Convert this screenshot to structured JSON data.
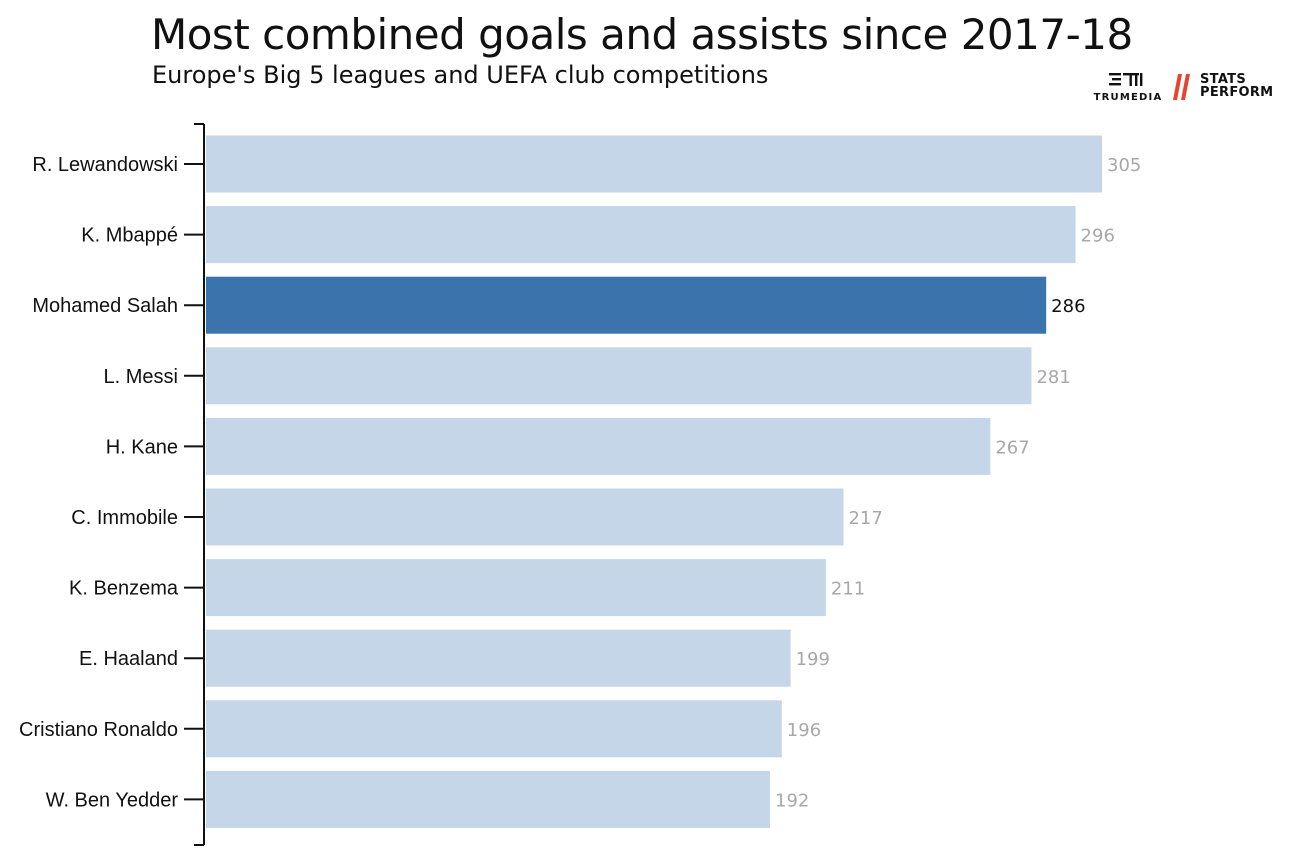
{
  "header": {
    "title": "Most combined goals and assists since 2017-18",
    "subtitle": "Europe's Big 5 leagues and UEFA club competitions"
  },
  "logos": {
    "trumedia": "TRUMEDIA",
    "stats_perform_line1": "STATS",
    "stats_perform_line2": "PERFORM"
  },
  "colors": {
    "bar_default": "#c5d6e8",
    "bar_highlight": "#3b73ad",
    "value_label_default": "#a8a8a8",
    "value_label_highlight": "#111111",
    "accent_red": "#e8432e"
  },
  "chart_data": {
    "type": "bar",
    "orientation": "horizontal",
    "title": "Most combined goals and assists since 2017-18",
    "subtitle": "Europe's Big 5 leagues and UEFA club competitions",
    "categories": [
      "R. Lewandowski",
      "K. Mbappé",
      "Mohamed Salah",
      "L. Messi",
      "H. Kane",
      "C. Immobile",
      "K. Benzema",
      "E. Haaland",
      "Cristiano Ronaldo",
      "W. Ben Yedder"
    ],
    "values": [
      305,
      296,
      286,
      281,
      267,
      217,
      211,
      199,
      196,
      192
    ],
    "highlight": "Mohamed Salah",
    "xlim": [
      0,
      305
    ],
    "grid": false,
    "legend": "none"
  }
}
